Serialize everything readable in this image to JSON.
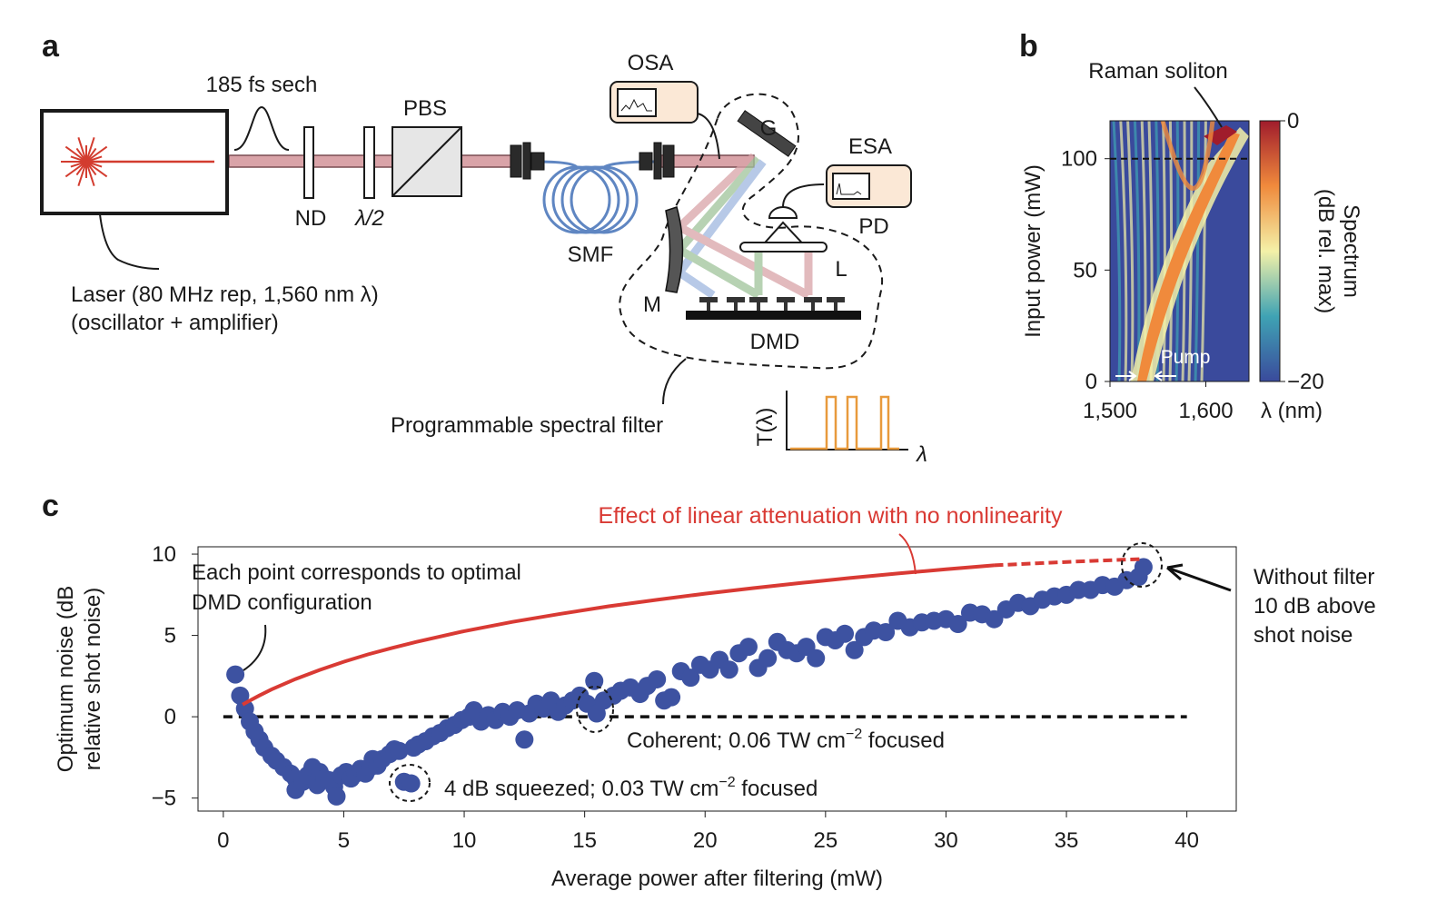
{
  "panel_a": {
    "label": "a",
    "pulse": "185 fs sech",
    "pbs": "PBS",
    "osa": "OSA",
    "grating": "G",
    "esa": "ESA",
    "nd": "ND",
    "half_wave": "λ/2",
    "smf": "SMF",
    "pd": "PD",
    "lens": "L",
    "mirror": "M",
    "dmd": "DMD",
    "laser": [
      "Laser (80 MHz rep, 1,560 nm λ)",
      "(oscillator + amplifier)"
    ],
    "filter": "Programmable spectral filter",
    "filter_y": "T(λ)",
    "filter_x": "λ"
  },
  "chart_data": [
    {
      "panel": "b",
      "type": "heatmap",
      "ylabel": "Input power (mW)",
      "xlabel": "λ (nm)",
      "colorbar_label": [
        "Spectrum",
        "(dB rel. max)"
      ],
      "annotations": {
        "soliton": "Raman soliton",
        "pump": "Pump"
      },
      "xlim": [
        1500,
        1645
      ],
      "ylim": [
        0,
        117
      ],
      "xticks": [
        {
          "value": 1500,
          "label": "1,500"
        },
        {
          "value": 1600,
          "label": "1,600"
        }
      ],
      "yticks": [
        0,
        50,
        100
      ],
      "clim": [
        -20,
        0
      ],
      "cticks": [
        0,
        {
          "value": -20,
          "label": "−20"
        }
      ],
      "hline": 100,
      "colormap": [
        "#3a4a9c",
        "#3fa3b4",
        "#f4f1a8",
        "#f08a3c",
        "#a01c2c"
      ]
    },
    {
      "panel": "c",
      "type": "scatter",
      "xlabel": "Average power after filtering (mW)",
      "ylabel": [
        "Optimum noise (dB",
        "relative shot noise)"
      ],
      "xlim": [
        -1.05,
        42.05
      ],
      "ylim": [
        -5.8,
        10.45
      ],
      "xticks": [
        0,
        5,
        10,
        15,
        20,
        25,
        30,
        35,
        40
      ],
      "yticks": [
        {
          "value": -5,
          "label": "−5"
        },
        0,
        5,
        10
      ],
      "color": "#3d52a1",
      "x": [
        0.5,
        0.7,
        0.9,
        1.1,
        1.3,
        1.5,
        1.7,
        2.0,
        2.2,
        2.5,
        2.8,
        3.0,
        3.0,
        3.3,
        3.5,
        3.7,
        3.9,
        4.0,
        4.2,
        4.4,
        4.6,
        4.7,
        4.9,
        5.1,
        5.3,
        5.5,
        5.7,
        5.9,
        6.1,
        6.2,
        6.4,
        6.6,
        6.9,
        7.1,
        7.3,
        7.5,
        7.8,
        7.9,
        8.1,
        8.4,
        8.7,
        9.0,
        9.3,
        9.6,
        9.9,
        10.2,
        10.4,
        10.7,
        11.0,
        11.3,
        11.6,
        11.9,
        12.2,
        12.5,
        12.7,
        13.0,
        13.3,
        13.6,
        13.9,
        14.2,
        14.5,
        14.8,
        15.1,
        15.4,
        15.5,
        15.8,
        16.2,
        16.5,
        16.9,
        17.3,
        17.6,
        18.0,
        18.3,
        18.6,
        19.0,
        19.4,
        19.8,
        20.2,
        20.6,
        21.0,
        21.4,
        21.8,
        22.2,
        22.6,
        23.0,
        23.4,
        23.8,
        24.2,
        24.6,
        25.0,
        25.4,
        25.8,
        26.2,
        26.6,
        27.0,
        27.5,
        28.0,
        28.5,
        29.0,
        29.5,
        30.0,
        30.5,
        31.0,
        31.5,
        32.0,
        32.5,
        33.0,
        33.5,
        34.0,
        34.5,
        35.0,
        35.5,
        36.0,
        36.5,
        37.0,
        37.5,
        38.0,
        38.2
      ],
      "values": [
        2.6,
        1.3,
        0.5,
        -0.3,
        -0.9,
        -1.4,
        -1.9,
        -2.4,
        -2.7,
        -3.1,
        -3.5,
        -3.8,
        -4.5,
        -4.0,
        -3.6,
        -3.1,
        -4.2,
        -3.4,
        -3.8,
        -3.9,
        -4.3,
        -4.9,
        -3.6,
        -3.4,
        -3.8,
        -3.5,
        -3.2,
        -3.5,
        -3.1,
        -2.6,
        -3.0,
        -2.6,
        -2.3,
        -2.0,
        -2.1,
        -4.0,
        -4.1,
        -1.9,
        -1.7,
        -1.5,
        -1.2,
        -1.0,
        -0.7,
        -0.5,
        -0.2,
        0.0,
        0.4,
        -0.3,
        0.1,
        -0.2,
        0.3,
        0.0,
        0.4,
        -1.4,
        0.2,
        0.8,
        0.5,
        1.0,
        0.3,
        0.7,
        1.0,
        1.3,
        0.8,
        2.2,
        0.2,
        1.0,
        1.3,
        1.6,
        1.8,
        1.4,
        1.9,
        2.3,
        1.0,
        1.2,
        2.8,
        2.4,
        3.2,
        2.9,
        3.5,
        2.9,
        3.9,
        4.3,
        3.0,
        3.6,
        4.6,
        4.1,
        3.9,
        4.3,
        3.6,
        4.9,
        4.7,
        5.1,
        4.1,
        4.9,
        5.3,
        5.2,
        5.9,
        5.5,
        5.8,
        5.9,
        6.0,
        5.7,
        6.4,
        6.3,
        6.0,
        6.6,
        7.0,
        6.8,
        7.2,
        7.4,
        7.5,
        7.8,
        7.8,
        8.1,
        8.0,
        8.4,
        8.6,
        9.2
      ],
      "curve": {
        "color": "#d93a34",
        "x": [
          0.8,
          1,
          1.5,
          2,
          3,
          4,
          5,
          6,
          7,
          8,
          10,
          12,
          14,
          16,
          18,
          20,
          22,
          24,
          26,
          28,
          30,
          32
        ],
        "values": [
          0.75,
          0.92,
          1.31,
          1.68,
          2.32,
          2.88,
          3.38,
          3.83,
          4.23,
          4.6,
          5.26,
          5.83,
          6.33,
          6.79,
          7.19,
          7.57,
          7.91,
          8.23,
          8.53,
          8.81,
          9.07,
          9.31
        ]
      },
      "curve_dashed": {
        "color": "#d93a34",
        "x": [
          32,
          34,
          36,
          38.2
        ],
        "values": [
          9.31,
          9.45,
          9.58,
          9.7
        ]
      },
      "hline": {
        "value": 0,
        "x": [
          0,
          40
        ]
      },
      "annotations": {
        "effect": "Effect of linear attenuation with no nonlinearity",
        "each_point": [
          "Each point corresponds to optimal",
          "DMD configuration"
        ],
        "coherent": [
          "Coherent; 0.06 TW cm",
          "−2",
          " focused"
        ],
        "squeezed": [
          "4 dB squeezed; 0.03 TW cm",
          "−2",
          " focused"
        ],
        "without_filter": [
          "Without filter",
          "10 dB above",
          "shot noise"
        ]
      }
    }
  ]
}
